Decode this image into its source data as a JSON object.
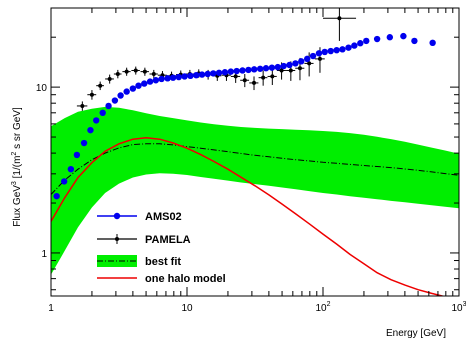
{
  "chart_data": {
    "type": "scatter",
    "xlabel": "Energy [GeV]",
    "ylabel": "Flux GeV",
    "ylabel_sup": "3",
    "ylabel_rest": " [1/(m",
    "ylabel_sup2": "2",
    "ylabel_tail": " s sr GeV]",
    "xscale": "log",
    "yscale": "log",
    "xlim": [
      1,
      1000
    ],
    "ylim": [
      0.55,
      30
    ],
    "x_ticks": [
      {
        "value": 1,
        "label": "1",
        "sup": ""
      },
      {
        "value": 10,
        "label": "10",
        "sup": ""
      },
      {
        "value": 100,
        "label": "10",
        "sup": "2"
      },
      {
        "value": 1000,
        "label": "10",
        "sup": "3"
      }
    ],
    "y_ticks": [
      {
        "value": 1,
        "label": "1"
      },
      {
        "value": 10,
        "label": "10"
      }
    ],
    "legend_position": "bottom-left",
    "series": [
      {
        "name": "AMS02",
        "kind": "points",
        "color": "#0000ee",
        "points": [
          [
            1.1,
            2.2
          ],
          [
            1.25,
            2.7
          ],
          [
            1.4,
            3.2
          ],
          [
            1.55,
            3.9
          ],
          [
            1.75,
            4.6
          ],
          [
            1.95,
            5.5
          ],
          [
            2.15,
            6.3
          ],
          [
            2.4,
            7.0
          ],
          [
            2.65,
            7.7
          ],
          [
            2.95,
            8.3
          ],
          [
            3.25,
            8.9
          ],
          [
            3.6,
            9.4
          ],
          [
            4.0,
            9.8
          ],
          [
            4.4,
            10.2
          ],
          [
            4.85,
            10.5
          ],
          [
            5.35,
            10.8
          ],
          [
            5.9,
            11.0
          ],
          [
            6.5,
            11.2
          ],
          [
            7.2,
            11.3
          ],
          [
            7.9,
            11.4
          ],
          [
            8.7,
            11.5
          ],
          [
            9.6,
            11.6
          ],
          [
            10.6,
            11.7
          ],
          [
            11.7,
            11.8
          ],
          [
            12.9,
            11.9
          ],
          [
            14.2,
            12.0
          ],
          [
            15.6,
            12.1
          ],
          [
            17.2,
            12.2
          ],
          [
            19.0,
            12.3
          ],
          [
            21.0,
            12.4
          ],
          [
            23.2,
            12.5
          ],
          [
            25.6,
            12.6
          ],
          [
            28.3,
            12.7
          ],
          [
            31.2,
            12.8
          ],
          [
            34.5,
            12.9
          ],
          [
            38.1,
            13.0
          ],
          [
            42.1,
            13.1
          ],
          [
            46.5,
            13.2
          ],
          [
            51.4,
            13.4
          ],
          [
            56.7,
            13.6
          ],
          [
            62.7,
            13.9
          ],
          [
            69.2,
            14.3
          ],
          [
            76.5,
            14.8
          ],
          [
            84.5,
            15.4
          ],
          [
            93.4,
            16.0
          ],
          [
            103,
            16.3
          ],
          [
            114,
            16.5
          ],
          [
            126,
            16.7
          ],
          [
            139,
            16.9
          ],
          [
            154,
            17.3
          ],
          [
            170,
            17.8
          ],
          [
            188,
            18.4
          ],
          [
            208,
            19.0
          ],
          [
            250,
            19.5
          ],
          [
            310,
            20.0
          ],
          [
            390,
            20.3
          ],
          [
            470,
            19.0
          ],
          [
            640,
            18.5
          ]
        ]
      },
      {
        "name": "PAMELA",
        "kind": "points_err",
        "color": "#000000",
        "points": [
          [
            1.7,
            7.7,
            1.55,
            1.85,
            7.2,
            8.2
          ],
          [
            2.0,
            9.0,
            1.85,
            2.15,
            8.4,
            9.6
          ],
          [
            2.3,
            10.2,
            2.15,
            2.45,
            9.6,
            10.8
          ],
          [
            2.7,
            11.2,
            2.5,
            2.9,
            10.5,
            11.9
          ],
          [
            3.1,
            12.0,
            2.9,
            3.3,
            11.3,
            12.7
          ],
          [
            3.6,
            12.4,
            3.35,
            3.85,
            11.7,
            13.1
          ],
          [
            4.2,
            12.6,
            3.9,
            4.5,
            11.9,
            13.3
          ],
          [
            4.9,
            12.4,
            4.55,
            5.25,
            11.7,
            13.1
          ],
          [
            5.7,
            12.0,
            5.3,
            6.1,
            11.3,
            12.7
          ],
          [
            6.6,
            11.8,
            6.1,
            7.1,
            11.1,
            12.5
          ],
          [
            7.7,
            11.7,
            7.1,
            8.3,
            11.0,
            12.4
          ],
          [
            9.0,
            11.9,
            8.3,
            9.7,
            11.2,
            12.6
          ],
          [
            10.5,
            12.0,
            9.7,
            11.3,
            11.3,
            12.7
          ],
          [
            12.2,
            12.1,
            11.3,
            13.1,
            11.4,
            12.8
          ],
          [
            14.3,
            11.9,
            13.2,
            15.4,
            11.1,
            12.7
          ],
          [
            16.7,
            11.7,
            15.5,
            17.9,
            10.9,
            12.5
          ],
          [
            19.5,
            11.8,
            18.0,
            21.0,
            10.9,
            12.7
          ],
          [
            22.8,
            11.6,
            21.0,
            24.6,
            10.6,
            12.6
          ],
          [
            26.6,
            11.0,
            24.6,
            28.6,
            10.0,
            12.0
          ],
          [
            31.1,
            10.6,
            28.7,
            33.5,
            9.6,
            11.6
          ],
          [
            36.3,
            11.4,
            33.6,
            39.0,
            10.2,
            12.6
          ],
          [
            42.4,
            11.6,
            39.1,
            45.7,
            10.3,
            12.9
          ],
          [
            49.6,
            12.6,
            45.8,
            53.4,
            11.1,
            14.1
          ],
          [
            58.0,
            12.6,
            53.5,
            62.5,
            10.9,
            14.3
          ],
          [
            67.7,
            13.0,
            62.5,
            72.9,
            11.0,
            15.0
          ],
          [
            79.1,
            13.9,
            73.0,
            85.2,
            11.6,
            16.2
          ],
          [
            95.0,
            14.8,
            87.0,
            103.0,
            12.2,
            17.4
          ],
          [
            132,
            26.0,
            100,
            175,
            19.0,
            33.0
          ]
        ]
      }
    ],
    "best_fit": {
      "name": "best fit",
      "band_color": "#00ee00",
      "line_color": "#000000",
      "x": [
        1,
        1.26,
        1.58,
        2,
        2.5,
        3.16,
        4,
        5,
        6.3,
        7.9,
        10,
        12.6,
        15.8,
        20,
        25,
        31.6,
        40,
        50,
        63,
        79,
        100,
        126,
        158,
        200,
        250,
        316,
        400,
        500,
        630,
        790,
        1000
      ],
      "center": [
        2.25,
        2.75,
        3.2,
        3.65,
        4.0,
        4.3,
        4.5,
        4.55,
        4.55,
        4.48,
        4.38,
        4.28,
        4.18,
        4.08,
        3.98,
        3.88,
        3.8,
        3.72,
        3.65,
        3.59,
        3.52,
        3.47,
        3.42,
        3.37,
        3.32,
        3.27,
        3.21,
        3.15,
        3.08,
        3.01,
        2.94
      ],
      "upper": [
        5.8,
        6.5,
        7.1,
        7.4,
        7.6,
        7.5,
        7.25,
        6.95,
        6.7,
        6.5,
        6.3,
        6.12,
        5.97,
        5.85,
        5.75,
        5.68,
        5.62,
        5.58,
        5.54,
        5.5,
        5.44,
        5.37,
        5.28,
        5.16,
        5.02,
        4.86,
        4.68,
        4.5,
        4.32,
        4.15,
        3.97
      ],
      "lower": [
        0.74,
        1.03,
        1.43,
        1.88,
        2.3,
        2.62,
        2.85,
        2.97,
        3.02,
        3.0,
        2.95,
        2.87,
        2.8,
        2.73,
        2.66,
        2.6,
        2.54,
        2.48,
        2.42,
        2.36,
        2.3,
        2.25,
        2.2,
        2.15,
        2.11,
        2.06,
        2.02,
        1.98,
        1.94,
        1.9,
        1.86
      ]
    },
    "one_halo": {
      "name": "one halo model",
      "color": "#ee0000",
      "x": [
        1,
        1.26,
        1.58,
        2,
        2.5,
        3.16,
        4,
        5,
        6.3,
        7.9,
        10,
        12.6,
        15.8,
        20,
        25,
        31.6,
        40,
        50,
        63,
        79,
        100,
        126,
        158,
        200,
        250,
        316,
        400,
        500,
        630,
        790,
        1000
      ],
      "y": [
        1.55,
        2.15,
        2.85,
        3.5,
        4.1,
        4.55,
        4.85,
        4.95,
        4.85,
        4.6,
        4.28,
        3.92,
        3.56,
        3.2,
        2.86,
        2.54,
        2.24,
        1.97,
        1.72,
        1.5,
        1.3,
        1.13,
        0.98,
        0.86,
        0.76,
        0.69,
        0.64,
        0.6,
        0.57,
        0.545,
        0.52
      ]
    }
  }
}
